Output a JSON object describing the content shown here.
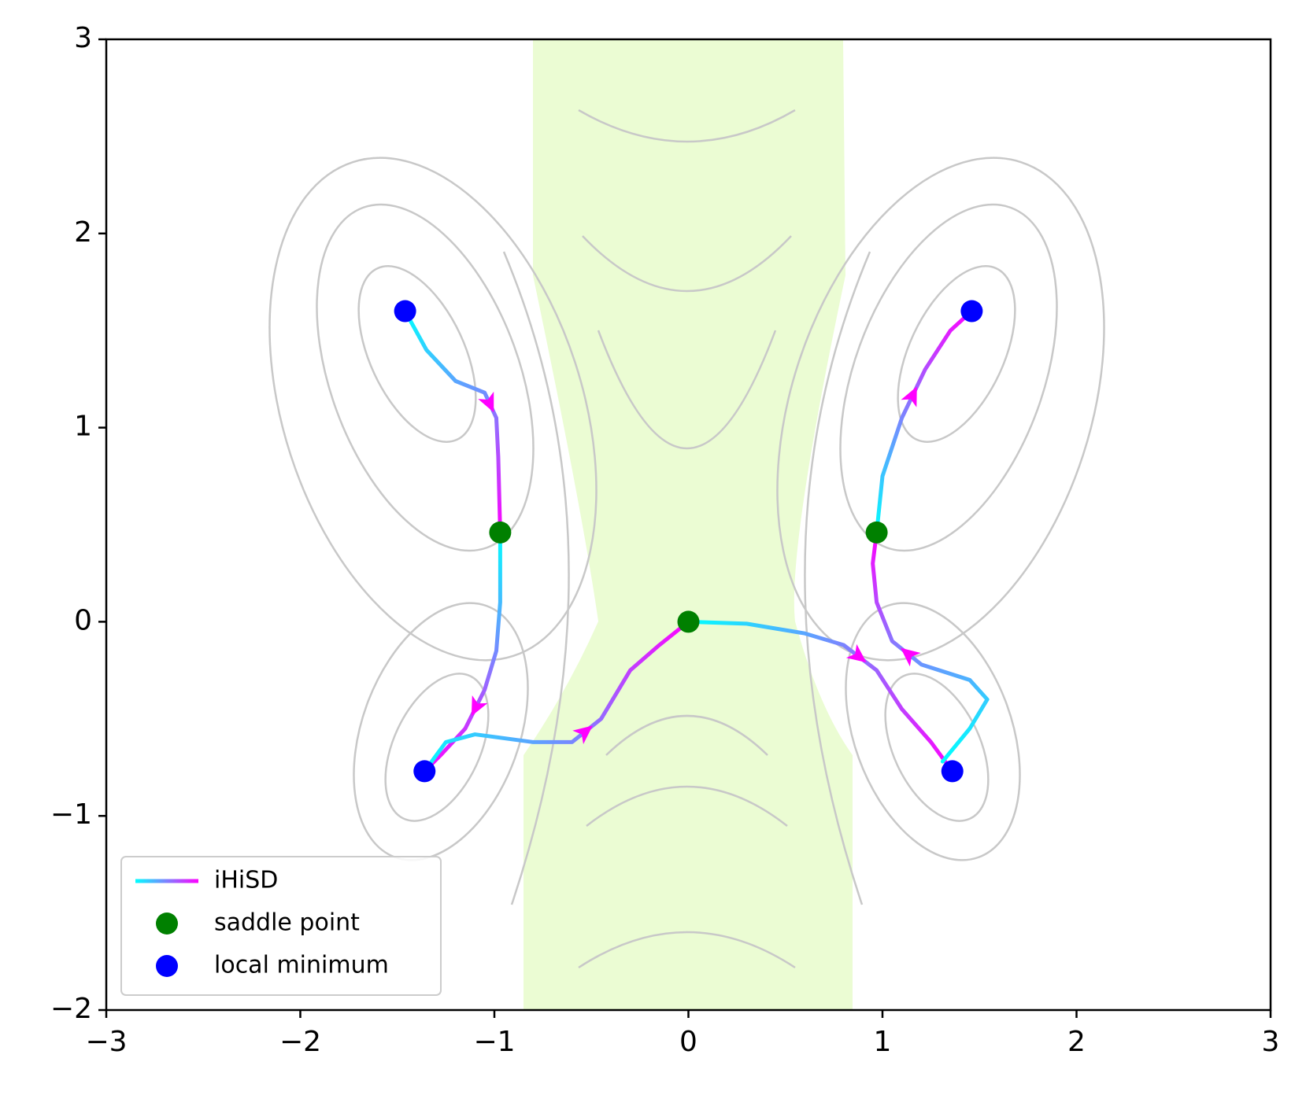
{
  "chart_data": {
    "type": "line",
    "xlim": [
      -3,
      3
    ],
    "ylim": [
      -2,
      3
    ],
    "xticks": [
      {
        "value": -3,
        "label": "−3"
      },
      {
        "value": -2,
        "label": "−2"
      },
      {
        "value": -1,
        "label": "−1"
      },
      0,
      1,
      2,
      3
    ],
    "yticks": [
      {
        "value": -2,
        "label": "−2"
      },
      {
        "value": -1,
        "label": "−1"
      },
      0,
      1,
      2,
      3
    ],
    "legend": "lower left",
    "lines": {
      "name": "iHiSD",
      "colors": [
        "#00ffff",
        "#ff00ff"
      ],
      "paths": [
        {
          "x": [
            -1.46,
            -1.35,
            -1.2,
            -1.05,
            -0.99,
            -0.98,
            -0.97
          ],
          "y": [
            1.6,
            1.4,
            1.24,
            1.18,
            1.05,
            0.85,
            0.46
          ]
        },
        {
          "x": [
            -0.97,
            -0.97,
            -0.99,
            -1.05,
            -1.15,
            -1.27,
            -1.36
          ],
          "y": [
            0.46,
            0.1,
            -0.15,
            -0.35,
            -0.55,
            -0.68,
            -0.77
          ]
        },
        {
          "x": [
            -1.36,
            -1.25,
            -1.1,
            -0.8,
            -0.6,
            -0.45,
            -0.3,
            -0.15,
            0
          ],
          "y": [
            -0.77,
            -0.62,
            -0.58,
            -0.62,
            -0.62,
            -0.5,
            -0.25,
            -0.12,
            0
          ]
        },
        {
          "x": [
            0,
            0.3,
            0.6,
            0.8,
            0.97,
            1.1,
            1.25,
            1.36
          ],
          "y": [
            0,
            -0.01,
            -0.06,
            -0.12,
            -0.25,
            -0.45,
            -0.62,
            -0.77
          ]
        },
        {
          "x": [
            1.31,
            1.45,
            1.54,
            1.45,
            1.2,
            1.05,
            0.97,
            0.95,
            0.97
          ],
          "y": [
            -0.72,
            -0.55,
            -0.4,
            -0.3,
            -0.22,
            -0.1,
            0.1,
            0.3,
            0.46
          ]
        },
        {
          "x": [
            0.97,
            1.0,
            1.1,
            1.22,
            1.35,
            1.46
          ],
          "y": [
            0.46,
            0.75,
            1.05,
            1.3,
            1.5,
            1.6
          ]
        }
      ]
    },
    "series": [
      {
        "name": "saddle point",
        "color": "#008000",
        "x": [
          -0.97,
          0.97,
          0
        ],
        "y": [
          0.46,
          0.46,
          0
        ]
      },
      {
        "name": "local minimum",
        "color": "#0000ff",
        "x": [
          -1.46,
          1.46,
          -1.36,
          1.36
        ],
        "y": [
          1.6,
          1.6,
          -0.77,
          -0.77
        ]
      }
    ]
  }
}
